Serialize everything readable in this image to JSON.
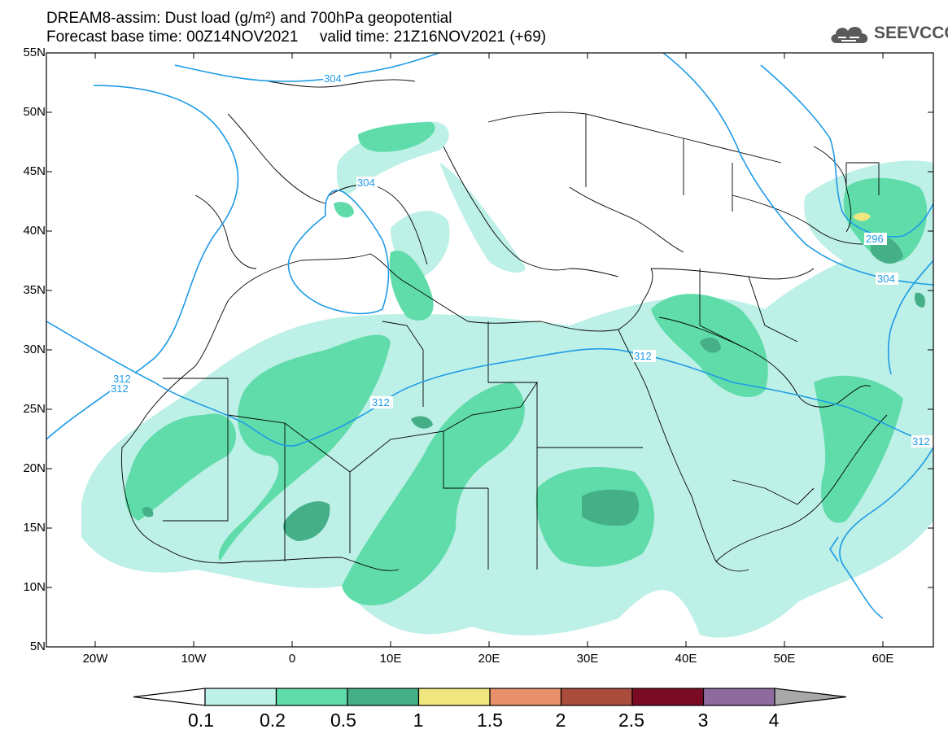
{
  "header": {
    "title_line1": "DREAM8-assim: Dust load (g/m²) and 700hPa geopotential",
    "title_line2": "Forecast base time: 00Z14NOV2021     valid time: 21Z16NOV2021 (+69)"
  },
  "logo": {
    "text": "SEEVCCC",
    "icon": "cloud-icon"
  },
  "map": {
    "lat_labels": [
      "55N",
      "50N",
      "45N",
      "40N",
      "35N",
      "30N",
      "25N",
      "20N",
      "15N",
      "10N",
      "5N"
    ],
    "lon_labels": [
      "20W",
      "10W",
      "0",
      "10E",
      "20E",
      "30E",
      "40E",
      "50E",
      "60E"
    ],
    "contour_labels": [
      "304",
      "304",
      "296",
      "304",
      "312",
      "312",
      "312",
      "312"
    ]
  },
  "colorbar": {
    "ticks": [
      "0.1",
      "0.2",
      "0.5",
      "1",
      "1.5",
      "2",
      "2.5",
      "3",
      "4"
    ],
    "colors": [
      "#ffffff",
      "#bdf0e6",
      "#5fdcaa",
      "#45b088",
      "#f0e67f",
      "#e8906a",
      "#a94c3c",
      "#7b0a25",
      "#8e6b9e",
      "#a8a8a8"
    ]
  }
}
